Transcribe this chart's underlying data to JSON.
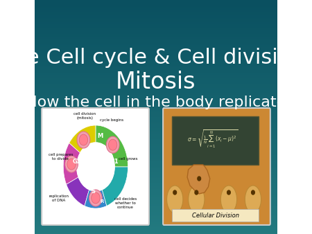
{
  "title_line1": "The Cell cycle & Cell division:",
  "title_line2": "Mitosis",
  "subtitle": "How the cell in the body replicate",
  "bg_color_top": "#1a7a7a",
  "bg_color_bottom": "#0d4d5c",
  "title_color": "#ffffff",
  "subtitle_color": "#ffffff",
  "title_fontsize": 22,
  "subtitle_fontsize": 16,
  "figsize": [
    4.5,
    3.38
  ],
  "dpi": 100
}
